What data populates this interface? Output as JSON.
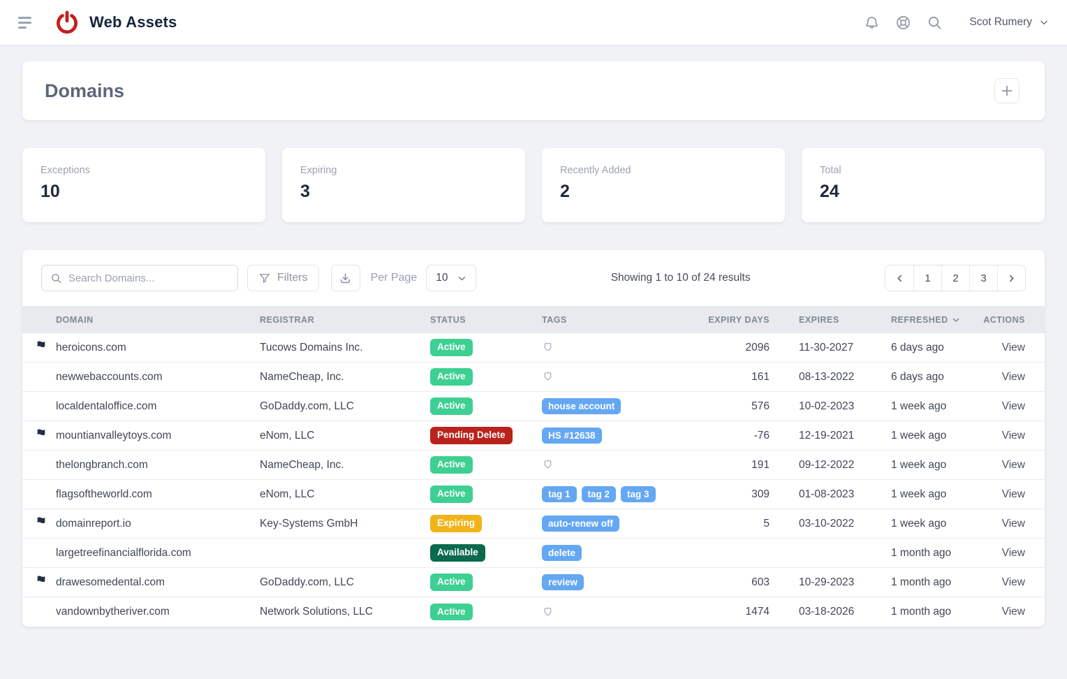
{
  "header": {
    "app_name": "Web Assets",
    "user_name": "Scot Rumery",
    "icons": [
      "menu-icon",
      "power-logo-icon",
      "bell-icon",
      "help-icon",
      "search-icon",
      "chevron-down-icon"
    ]
  },
  "page": {
    "title": "Domains"
  },
  "stats": [
    {
      "label": "Exceptions",
      "value": "10"
    },
    {
      "label": "Expiring",
      "value": "3"
    },
    {
      "label": "Recently Added",
      "value": "2"
    },
    {
      "label": "Total",
      "value": "24"
    }
  ],
  "toolbar": {
    "search_placeholder": "Search Domains...",
    "filters_label": "Filters",
    "per_page_label": "Per Page",
    "per_page_value": "10",
    "results_text": "Showing 1 to 10 of 24 results",
    "pagination": [
      "1",
      "2",
      "3"
    ]
  },
  "table": {
    "columns": [
      "DOMAIN",
      "REGISTRAR",
      "STATUS",
      "TAGS",
      "EXPIRY DAYS",
      "EXPIRES",
      "REFRESHED",
      "ACTIONS"
    ],
    "action_label": "View",
    "rows": [
      {
        "flagged": true,
        "domain": "heroicons.com",
        "registrar": "Tucows Domains Inc.",
        "status": "Active",
        "status_type": "active",
        "tags": [],
        "expiry_days": "2096",
        "expires": "11-30-2027",
        "refreshed": "6 days ago"
      },
      {
        "flagged": false,
        "domain": "newwebaccounts.com",
        "registrar": "NameCheap, Inc.",
        "status": "Active",
        "status_type": "active",
        "tags": [],
        "expiry_days": "161",
        "expires": "08-13-2022",
        "refreshed": "6 days ago"
      },
      {
        "flagged": false,
        "domain": "localdentaloffice.com",
        "registrar": "GoDaddy.com, LLC",
        "status": "Active",
        "status_type": "active",
        "tags": [
          "house account"
        ],
        "expiry_days": "576",
        "expires": "10-02-2023",
        "refreshed": "1 week ago"
      },
      {
        "flagged": true,
        "domain": "mountianvalleytoys.com",
        "registrar": "eNom, LLC",
        "status": "Pending Delete",
        "status_type": "pending-delete",
        "tags": [
          "HS #12638"
        ],
        "expiry_days": "-76",
        "expires": "12-19-2021",
        "refreshed": "1 week ago"
      },
      {
        "flagged": false,
        "domain": "thelongbranch.com",
        "registrar": "NameCheap, Inc.",
        "status": "Active",
        "status_type": "active",
        "tags": [],
        "expiry_days": "191",
        "expires": "09-12-2022",
        "refreshed": "1 week ago"
      },
      {
        "flagged": false,
        "domain": "flagsoftheworld.com",
        "registrar": "eNom, LLC",
        "status": "Active",
        "status_type": "active",
        "tags": [
          "tag 1",
          "tag 2",
          "tag 3"
        ],
        "expiry_days": "309",
        "expires": "01-08-2023",
        "refreshed": "1 week ago"
      },
      {
        "flagged": true,
        "domain": "domainreport.io",
        "registrar": "Key-Systems GmbH",
        "status": "Expiring",
        "status_type": "expiring",
        "tags": [
          "auto-renew off"
        ],
        "expiry_days": "5",
        "expires": "03-10-2022",
        "refreshed": "1 week ago"
      },
      {
        "flagged": false,
        "domain": "largetreefinancialflorida.com",
        "registrar": "",
        "status": "Available",
        "status_type": "available",
        "tags": [
          "delete"
        ],
        "expiry_days": "",
        "expires": "",
        "refreshed": "1 month ago"
      },
      {
        "flagged": true,
        "domain": "drawesomedental.com",
        "registrar": "GoDaddy.com, LLC",
        "status": "Active",
        "status_type": "active",
        "tags": [
          "review"
        ],
        "expiry_days": "603",
        "expires": "10-29-2023",
        "refreshed": "1 month ago"
      },
      {
        "flagged": false,
        "domain": "vandownbytheriver.com",
        "registrar": "Network Solutions, LLC",
        "status": "Active",
        "status_type": "active",
        "tags": [],
        "expiry_days": "1474",
        "expires": "03-18-2026",
        "refreshed": "1 month ago"
      }
    ]
  },
  "colors": {
    "brand_red": "#c2201f",
    "status_active": "#3dd092",
    "status_pending_delete": "#b9231c",
    "status_expiring": "#f2b319",
    "status_available": "#0b6a4e",
    "tag_blue": "#64a7f3"
  }
}
